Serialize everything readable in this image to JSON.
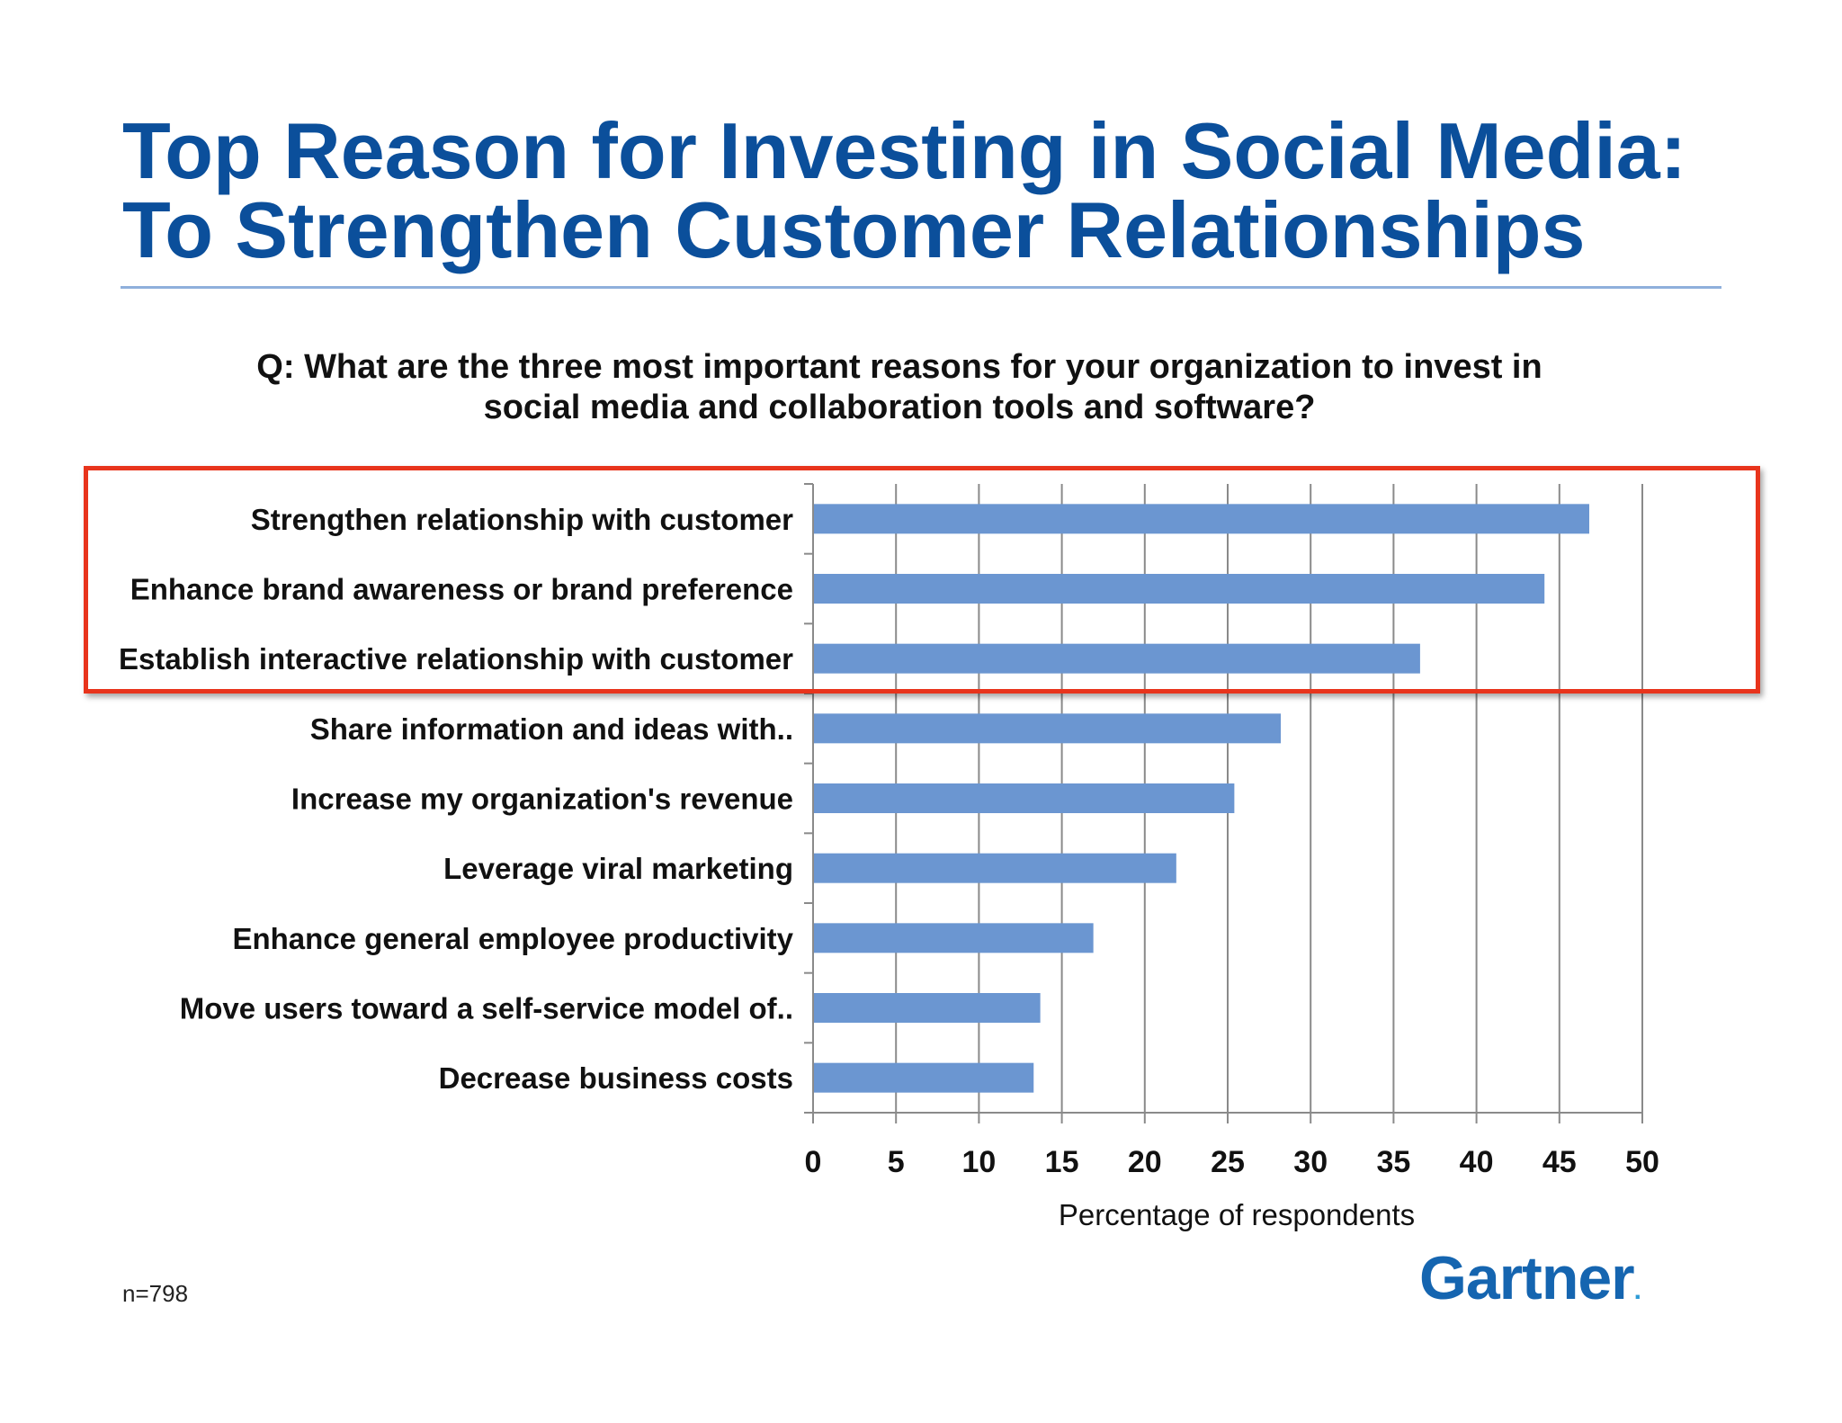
{
  "title": {
    "line1": "Top Reason for Investing in Social Media:",
    "line2": "To Strengthen Customer Relationships"
  },
  "question": {
    "line1": "Q: What are the three most important reasons for your organization to invest in",
    "line2": "social media and collaboration tools and software?"
  },
  "chart_data": {
    "type": "bar",
    "orientation": "horizontal",
    "categories": [
      "Strengthen relationship with customer",
      "Enhance brand awareness or brand preference",
      "Establish interactive relationship with customer",
      "Share information and ideas with..",
      "Increase my organization's revenue",
      "Leverage viral marketing",
      "Enhance general employee productivity",
      "Move users toward a self-service model of..",
      "Decrease business costs"
    ],
    "values": [
      46.8,
      44.1,
      36.6,
      28.2,
      25.4,
      21.9,
      16.9,
      13.7,
      13.3
    ],
    "xlabel": "Percentage of respondents",
    "xlim": [
      0,
      50
    ],
    "xticks": [
      "0",
      "5",
      "10",
      "15",
      "20",
      "25",
      "30",
      "35",
      "40",
      "45",
      "50"
    ],
    "bar_color": "#6b96d1",
    "highlighted_categories": 3,
    "highlight_color": "#e8341c"
  },
  "footer": {
    "sample_note": "n=798",
    "logo_text": "Gartner",
    "logo_mark": "."
  }
}
